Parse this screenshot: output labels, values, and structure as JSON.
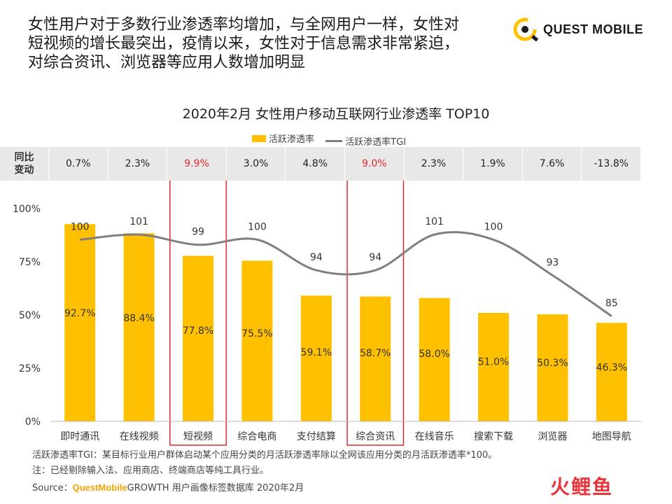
{
  "headline": {
    "line1": "女性用户对于多数行业渗透率均增加，与全网用户一样，女性对",
    "line2": "短视频的增长最突出，疫情以来，女性对于信息需求非常紧迫，",
    "line3": "对综合资讯、浏览器等应用人数增加明显"
  },
  "logo": {
    "text": "QUEST MOBILE",
    "accent": "#FFC000"
  },
  "chart_data": {
    "type": "bar",
    "title": "2020年2月 女性用户移动互联网行业渗透率 TOP10",
    "categories": [
      "即时通讯",
      "在线视频",
      "短视频",
      "综合电商",
      "支付结算",
      "综合资讯",
      "在线音乐",
      "搜索下载",
      "浏览器",
      "地图导航"
    ],
    "series": [
      {
        "name": "活跃渗透率",
        "kind": "bar",
        "color": "#FFC000",
        "values": [
          92.7,
          88.4,
          77.8,
          75.5,
          59.1,
          58.7,
          58.0,
          51.0,
          50.3,
          46.3
        ],
        "labels": [
          "92.7%",
          "88.4%",
          "77.8%",
          "75.5%",
          "59.1%",
          "58.7%",
          "58.0%",
          "51.0%",
          "50.3%",
          "46.3%"
        ]
      },
      {
        "name": "活跃渗透率TGI",
        "kind": "line",
        "color": "#7F7F7F",
        "values": [
          100,
          101,
          99,
          100,
          94,
          94,
          101,
          100,
          93,
          85
        ]
      }
    ],
    "ylim": [
      0,
      100
    ],
    "yticks": [
      "0%",
      "25%",
      "50%",
      "75%",
      "100%"
    ],
    "legend_position": "top-center",
    "change_row_label": [
      "同比",
      "变动"
    ],
    "yoy_change": [
      "0.7%",
      "2.3%",
      "9.9%",
      "3.0%",
      "4.8%",
      "9.0%",
      "2.3%",
      "1.9%",
      "7.6%",
      "-13.8%"
    ],
    "highlighted_categories": [
      2,
      5
    ],
    "highlight_color": "#E0282E"
  },
  "footnotes": {
    "note1": "活跃渗透率TGI：某目标行业用户群体启动某个应用分类的月活跃渗透率除以全网该应用分类的月活跃渗透率*100。",
    "note2": "注：已经剔除输入法、应用商店、终端商店等纯工具行业。"
  },
  "source": {
    "prefix": "Source：",
    "brand": "QuestMobile",
    "rest": "GROWTH 用户画像标签数据库 2020年2月"
  },
  "watermark": {
    "text": "火鲤鱼"
  }
}
